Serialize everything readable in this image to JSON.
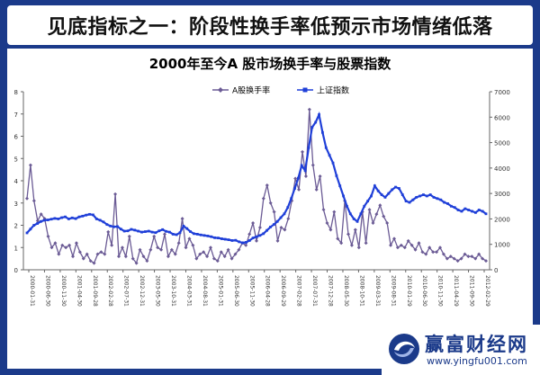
{
  "headline": "见底指标之一：阶段性换手率低预示市场情绪低落",
  "logo": {
    "name": "赢富财经网",
    "url": "www.yingfu001.com"
  },
  "chart_data": {
    "type": "line",
    "title": "2000年至今A 股市场换手率与股票指数",
    "xlabel": "",
    "ylabel_left": "",
    "ylabel_right": "",
    "x_range": [
      "2000-01",
      "2012-06"
    ],
    "y_left_lim": [
      0,
      8
    ],
    "y_left_ticks": [
      0,
      1,
      2,
      3,
      4,
      5,
      6,
      7,
      8
    ],
    "y_right_lim": [
      0,
      7000
    ],
    "y_right_ticks": [
      0,
      1000,
      2000,
      3000,
      4000,
      5000,
      6000,
      7000
    ],
    "x_tick_labels": [
      "2000-01-31",
      "2000-06-30",
      "2000-11-30",
      "2001-04-30",
      "2001-09-28",
      "2002-02-28",
      "2002-07-31",
      "2002-12-31",
      "2003-05-30",
      "2003-10-31",
      "2004-03-31",
      "2004-08-31",
      "2005-01-31",
      "2005-06-30",
      "2005-11-30",
      "2006-04-28",
      "2006-09-29",
      "2007-02-28",
      "2007-07-31",
      "2007-12-28",
      "2008-05-30",
      "2008-10-31",
      "2009-03-31",
      "2009-08-31",
      "2010-01-29",
      "2010-06-30",
      "2010-11-30",
      "2011-04-29",
      "2011-09-30",
      "2012-02-29"
    ],
    "legend": {
      "position": "top-center"
    },
    "series": [
      {
        "name": "A股换手率",
        "axis": "left",
        "color": "#6b5b95",
        "marker": "diamond",
        "values": [
          3.2,
          4.7,
          3.1,
          2.2,
          2.5,
          2.3,
          1.5,
          1.0,
          1.2,
          0.7,
          1.1,
          1.0,
          1.1,
          0.6,
          1.2,
          0.8,
          0.5,
          0.7,
          0.4,
          0.3,
          0.7,
          0.8,
          0.7,
          1.7,
          1.1,
          3.4,
          0.6,
          1.0,
          0.6,
          1.5,
          0.5,
          0.3,
          0.9,
          0.6,
          0.4,
          0.9,
          1.5,
          1.0,
          0.9,
          1.6,
          0.6,
          0.9,
          0.7,
          1.2,
          2.3,
          1.0,
          1.4,
          1.1,
          0.5,
          0.7,
          0.8,
          0.6,
          1.0,
          0.5,
          0.4,
          0.8,
          0.6,
          0.9,
          0.5,
          0.7,
          0.9,
          1.2,
          1.1,
          1.6,
          2.1,
          1.3,
          1.9,
          3.2,
          3.8,
          3.0,
          2.6,
          1.3,
          1.9,
          1.8,
          2.3,
          3.1,
          4.1,
          3.6,
          5.3,
          4.2,
          7.2,
          4.7,
          3.6,
          4.2,
          2.7,
          2.1,
          1.8,
          2.6,
          1.4,
          1.2,
          3.1,
          1.6,
          1.1,
          1.8,
          1.0,
          2.6,
          1.2,
          2.7,
          2.1,
          2.5,
          2.9,
          2.4,
          2.1,
          1.1,
          1.4,
          1.0,
          1.1,
          1.0,
          1.3,
          1.1,
          0.9,
          1.2,
          0.8,
          0.7,
          1.0,
          0.8,
          0.8,
          1.0,
          0.7,
          0.5,
          0.6,
          0.5,
          0.4,
          0.5,
          0.7,
          0.6,
          0.6,
          0.5,
          0.7,
          0.5,
          0.4
        ]
      },
      {
        "name": "上证指数",
        "axis": "right",
        "color": "#1f3fd8",
        "marker": "square",
        "values": [
          1450,
          1600,
          1750,
          1820,
          1900,
          1950,
          1960,
          1990,
          2020,
          2000,
          2050,
          2080,
          2000,
          2040,
          2010,
          2080,
          2110,
          2150,
          2180,
          2160,
          2000,
          1950,
          1880,
          1780,
          1720,
          1690,
          1700,
          1600,
          1520,
          1530,
          1590,
          1560,
          1520,
          1480,
          1500,
          1520,
          1480,
          1460,
          1530,
          1580,
          1510,
          1480,
          1400,
          1380,
          1460,
          1720,
          1620,
          1500,
          1420,
          1400,
          1370,
          1350,
          1330,
          1300,
          1260,
          1250,
          1220,
          1200,
          1180,
          1150,
          1160,
          1100,
          1060,
          1080,
          1150,
          1250,
          1300,
          1350,
          1420,
          1550,
          1680,
          1780,
          1900,
          2050,
          2200,
          2450,
          2800,
          3200,
          3600,
          4100,
          3900,
          4800,
          5600,
          5800,
          6100,
          5400,
          4800,
          4500,
          4200,
          3700,
          3300,
          2900,
          2500,
          2200,
          2000,
          1900,
          2200,
          2500,
          2700,
          2900,
          3300,
          3100,
          2950,
          2850,
          3000,
          3150,
          3250,
          3200,
          2950,
          2700,
          2650,
          2750,
          2850,
          2900,
          2950,
          2900,
          2950,
          2850,
          2800,
          2750,
          2650,
          2600,
          2500,
          2450,
          2350,
          2300,
          2400,
          2350,
          2300,
          2250,
          2350,
          2300,
          2200
        ]
      }
    ]
  }
}
